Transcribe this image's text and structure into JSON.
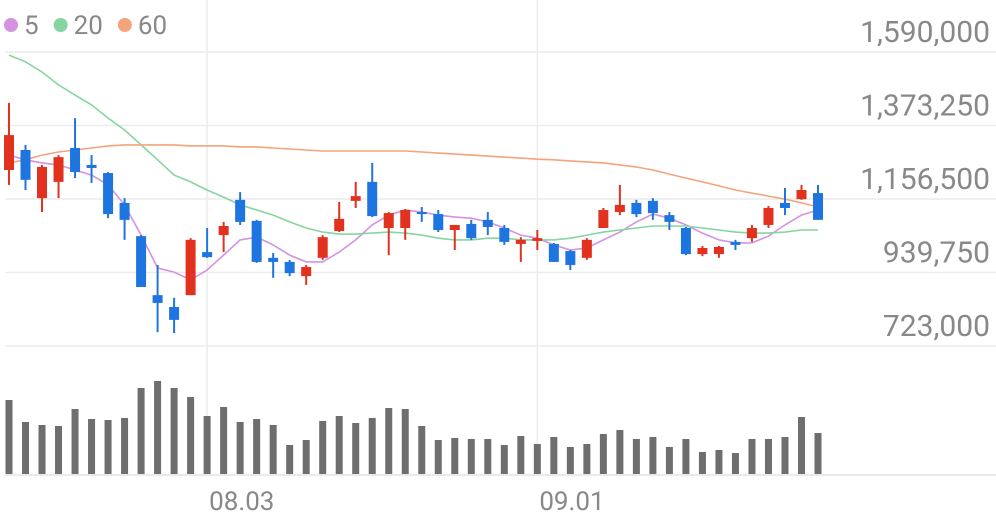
{
  "chart_data": {
    "type": "candlestick",
    "categories": [
      null,
      null,
      null,
      null,
      null,
      null,
      null,
      null,
      null,
      null,
      null,
      null,
      "08.03",
      null,
      null,
      null,
      null,
      null,
      null,
      null,
      null,
      null,
      null,
      null,
      null,
      null,
      null,
      null,
      null,
      null,
      null,
      null,
      "09.01",
      null,
      null,
      null,
      null,
      null,
      null,
      null,
      null,
      null,
      null,
      null,
      null,
      null,
      null,
      null,
      null,
      null
    ],
    "open": [
      1242000,
      1301000,
      1159000,
      1207000,
      1307000,
      1257000,
      1233000,
      1145000,
      1047000,
      873000,
      838000,
      873000,
      1000000,
      1050000,
      1154000,
      1092000,
      983000,
      971000,
      929000,
      983000,
      1062000,
      1151000,
      1207000,
      1071000,
      1071000,
      1118000,
      1112000,
      1065000,
      1083000,
      1095000,
      1071000,
      1024000,
      1033000,
      1024000,
      1003000,
      983000,
      1071000,
      1118000,
      1145000,
      1151000,
      1109000,
      1071000,
      994000,
      994000,
      1030000,
      1041000,
      1080000,
      1145000,
      1156000,
      1174000
    ],
    "high": [
      1440000,
      1316000,
      1257000,
      1286000,
      1395000,
      1286000,
      1236000,
      1159000,
      1050000,
      962000,
      865000,
      1041000,
      1071000,
      1089000,
      1177000,
      1095000,
      997000,
      977000,
      962000,
      1050000,
      1148000,
      1207000,
      1263000,
      1118000,
      1127000,
      1133000,
      1124000,
      1080000,
      1095000,
      1118000,
      1080000,
      1044000,
      1065000,
      1027000,
      1006000,
      1041000,
      1130000,
      1198000,
      1154000,
      1159000,
      1118000,
      1074000,
      1018000,
      1018000,
      1036000,
      1080000,
      1136000,
      1189000,
      1198000,
      1198000
    ],
    "low": [
      1198000,
      1183000,
      1118000,
      1159000,
      1218000,
      1204000,
      1100000,
      1036000,
      897000,
      764000,
      761000,
      873000,
      983000,
      1000000,
      1080000,
      968000,
      924000,
      929000,
      903000,
      977000,
      1059000,
      1130000,
      1103000,
      991000,
      1036000,
      1089000,
      1059000,
      1006000,
      1036000,
      1050000,
      1021000,
      971000,
      1006000,
      971000,
      947000,
      977000,
      1071000,
      1109000,
      1103000,
      1095000,
      1065000,
      991000,
      988000,
      983000,
      1006000,
      1030000,
      1071000,
      1109000,
      1154000,
      1095000
    ],
    "close": [
      1345000,
      1213000,
      1251000,
      1280000,
      1236000,
      1248000,
      1112000,
      1095000,
      897000,
      850000,
      800000,
      1036000,
      985000,
      1077000,
      1089000,
      971000,
      971000,
      938000,
      956000,
      1044000,
      1098000,
      1165000,
      1106000,
      1115000,
      1124000,
      1112000,
      1065000,
      1080000,
      1041000,
      1074000,
      1030000,
      1036000,
      1041000,
      971000,
      962000,
      1036000,
      1124000,
      1139000,
      1112000,
      1115000,
      1089000,
      994000,
      1012000,
      1015000,
      1021000,
      1071000,
      1130000,
      1130000,
      1183000,
      1095000
    ],
    "up_color": "#e0321e",
    "down_color": "#1f75e0",
    "ylim": [
      723000,
      1590000
    ],
    "yticks": [
      {
        "value": 723000,
        "label": "723,000"
      },
      {
        "value": 939750,
        "label": "939,750"
      },
      {
        "value": 1156500,
        "label": "1,156,500"
      },
      {
        "value": 1373250,
        "label": "1,373,250"
      },
      {
        "value": 1590000,
        "label": "1,590,000"
      }
    ],
    "grid": true,
    "series": [
      {
        "name": "5",
        "color": "#d592e0",
        "values": [
          1286000,
          1272000,
          1263000,
          1257000,
          1242000,
          1227000,
          1198000,
          1139000,
          1050000,
          953000,
          941000,
          918000,
          947000,
          991000,
          1036000,
          1044000,
          1021000,
          991000,
          971000,
          971000,
          1000000,
          1036000,
          1080000,
          1109000,
          1124000,
          1118000,
          1109000,
          1103000,
          1100000,
          1089000,
          1071000,
          1050000,
          1041000,
          1021000,
          1006000,
          1012000,
          1036000,
          1059000,
          1089000,
          1112000,
          1100000,
          1080000,
          1056000,
          1036000,
          1027000,
          1027000,
          1047000,
          1080000,
          1109000,
          1124000
        ]
      },
      {
        "name": "20",
        "color": "#86d5a1",
        "values": [
          1581000,
          1561000,
          1531000,
          1493000,
          1463000,
          1434000,
          1395000,
          1360000,
          1316000,
          1272000,
          1227000,
          1207000,
          1183000,
          1162000,
          1139000,
          1124000,
          1109000,
          1089000,
          1071000,
          1059000,
          1053000,
          1053000,
          1056000,
          1059000,
          1056000,
          1050000,
          1041000,
          1036000,
          1036000,
          1041000,
          1041000,
          1036000,
          1036000,
          1036000,
          1041000,
          1050000,
          1059000,
          1065000,
          1071000,
          1077000,
          1077000,
          1077000,
          1071000,
          1065000,
          1059000,
          1056000,
          1056000,
          1059000,
          1065000,
          1065000
        ]
      },
      {
        "name": "60",
        "color": "#f3a47c",
        "values": [
          1263000,
          1272000,
          1286000,
          1295000,
          1301000,
          1307000,
          1313000,
          1316000,
          1316000,
          1316000,
          1316000,
          1313000,
          1313000,
          1313000,
          1310000,
          1310000,
          1307000,
          1304000,
          1301000,
          1298000,
          1298000,
          1298000,
          1298000,
          1298000,
          1298000,
          1295000,
          1292000,
          1289000,
          1286000,
          1283000,
          1280000,
          1277000,
          1274000,
          1272000,
          1269000,
          1266000,
          1263000,
          1257000,
          1251000,
          1242000,
          1230000,
          1218000,
          1207000,
          1195000,
          1183000,
          1174000,
          1165000,
          1156000,
          1145000,
          1133000
        ]
      }
    ],
    "volume": {
      "color": "#6e6e6e",
      "ylim": [
        0,
        100
      ],
      "values": [
        74,
        52,
        49,
        48,
        65,
        55,
        54,
        56,
        86,
        93,
        86,
        77,
        58,
        67,
        52,
        55,
        49,
        29,
        34,
        53,
        58,
        51,
        56,
        66,
        65,
        48,
        34,
        36,
        35,
        35,
        29,
        38,
        30,
        37,
        27,
        30,
        40,
        44,
        35,
        37,
        27,
        35,
        22,
        24,
        21,
        35,
        35,
        37,
        57,
        41
      ]
    }
  }
}
